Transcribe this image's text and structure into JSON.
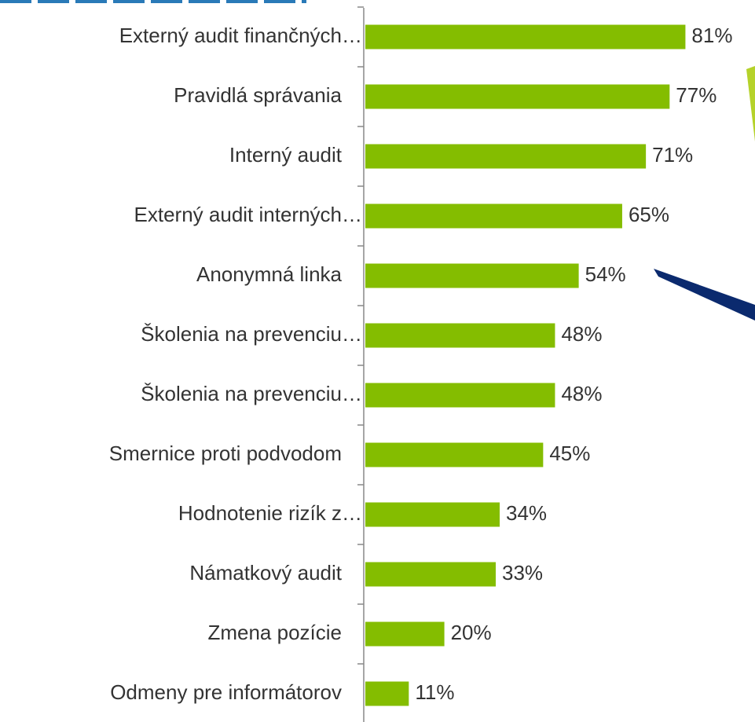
{
  "chart_data": {
    "type": "bar",
    "orientation": "horizontal",
    "categories": [
      "Externý audit finančných…",
      "Pravidlá správania",
      "Interný audit",
      "Externý audit interných…",
      "Anonymná linka",
      "Školenia na prevenciu…",
      "Školenia na prevenciu…",
      "Smernice proti podvodom",
      "Hodnotenie rizík z…",
      "Námatkový audit",
      "Zmena pozície",
      "Odmeny pre informátorov"
    ],
    "values": [
      81,
      77,
      71,
      65,
      54,
      48,
      48,
      45,
      34,
      33,
      20,
      11
    ],
    "value_labels": [
      "81%",
      "77%",
      "71%",
      "65%",
      "54%",
      "48%",
      "48%",
      "45%",
      "34%",
      "33%",
      "20%",
      "11%"
    ],
    "color": "#84bd00"
  }
}
